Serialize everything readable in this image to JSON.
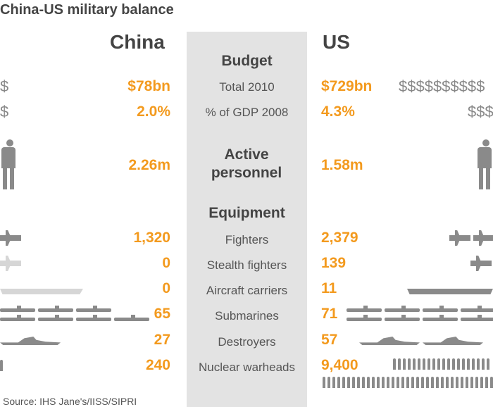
{
  "title": "China-US military balance",
  "source": "Source: IHS Jane's/IISS/SIPRI",
  "colors": {
    "value": "#f39a1e",
    "panel": "#e3e3e3",
    "icon": "#8a8a8a"
  },
  "chart_data": {
    "type": "table",
    "title": "China-US military balance",
    "columns": [
      "China",
      "US"
    ],
    "sections": [
      {
        "heading": "Budget",
        "rows": [
          {
            "label": "Total 2010",
            "china": "$78bn",
            "us": "$729bn"
          },
          {
            "label": "% of GDP 2008",
            "china": "2.0%",
            "us": "4.3%"
          }
        ]
      },
      {
        "heading": "Active personnel",
        "rows": [
          {
            "label": "",
            "china": "2.26m",
            "us": "1.58m"
          }
        ]
      },
      {
        "heading": "Equipment",
        "rows": [
          {
            "label": "Fighters",
            "china": "1,320",
            "us": "2,379"
          },
          {
            "label": "Stealth fighters",
            "china": "0",
            "us": "139"
          },
          {
            "label": "Aircraft carriers",
            "china": "0",
            "us": "11"
          },
          {
            "label": "Submarines",
            "china": "65",
            "us": "71"
          },
          {
            "label": "Destroyers",
            "china": "27",
            "us": "57"
          },
          {
            "label": "Nuclear warheads",
            "china": "240",
            "us": "9,400"
          }
        ]
      }
    ]
  },
  "icons": {
    "dollar_china_total": "$",
    "dollar_china_gdp": "$",
    "dollar_us_total": "$$$$$$$$$$",
    "dollar_us_gdp": "$$$"
  }
}
